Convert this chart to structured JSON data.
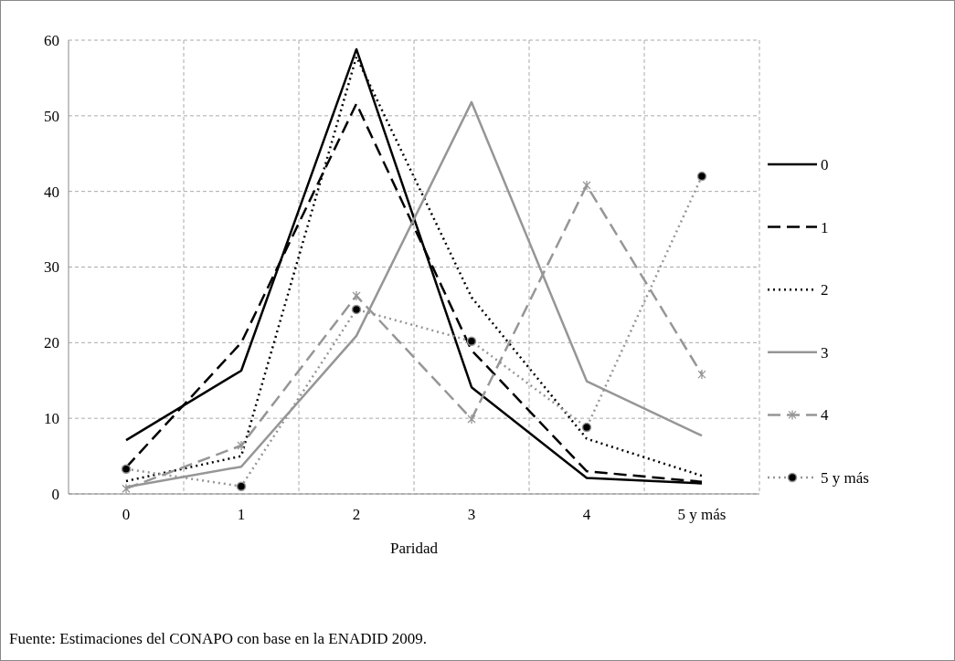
{
  "chart_data": {
    "type": "line",
    "xlabel": "Paridad",
    "categories": [
      "0",
      "1",
      "2",
      "3",
      "4",
      "5 y más"
    ],
    "ylim": [
      0,
      60
    ],
    "yticks": [
      0,
      10,
      20,
      30,
      40,
      50,
      60
    ],
    "grid": true,
    "legend": "right",
    "series": [
      {
        "name": "0",
        "color": "#000000",
        "line_style": "solid",
        "marker": "none",
        "values": [
          7.1,
          16.3,
          58.8,
          14.1,
          2.1,
          1.4
        ]
      },
      {
        "name": "1",
        "color": "#000000",
        "line_style": "dashed",
        "marker": "none",
        "values": [
          3.5,
          20,
          51.6,
          19,
          3,
          1.6
        ]
      },
      {
        "name": "2",
        "color": "#000000",
        "line_style": "dotted",
        "marker": "none",
        "values": [
          1.7,
          5,
          57.8,
          26,
          7.3,
          2.4
        ]
      },
      {
        "name": "3",
        "color": "#969696",
        "line_style": "solid",
        "marker": "none",
        "values": [
          0.9,
          3.6,
          20.9,
          51.8,
          14.9,
          7.7
        ]
      },
      {
        "name": "4",
        "color": "#969696",
        "line_style": "dashed",
        "marker": "cross",
        "values": [
          0.7,
          6.4,
          26.2,
          9.9,
          40.8,
          15.8
        ]
      },
      {
        "name": "5 y más",
        "color": "#969696",
        "line_style": "dotted",
        "marker": "circle",
        "values": [
          3.3,
          1.0,
          24.4,
          20.2,
          8.8,
          42.0
        ]
      }
    ],
    "annotations": [
      "Fuente: Estimaciones del CONAPO con base en la ENADID 2009."
    ]
  }
}
